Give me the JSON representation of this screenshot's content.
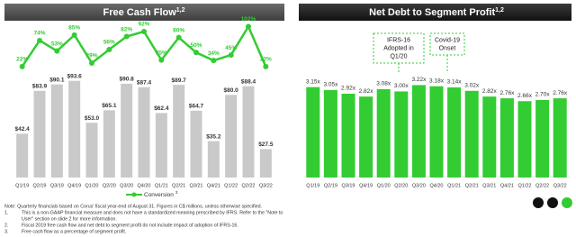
{
  "chart_data": [
    {
      "type": "bar_line",
      "title": "Free Cash Flow",
      "title_superscript": "1,2",
      "categories": [
        "Q1/19",
        "Q2/19",
        "Q3/19",
        "Q4/19",
        "Q1/20",
        "Q2/20",
        "Q3/20",
        "Q4/20",
        "Q1/21",
        "Q2/21",
        "Q3/21",
        "Q4/21",
        "Q1/22",
        "Q2/22",
        "Q3/22"
      ],
      "ylim": [
        0,
        150
      ],
      "y2lim": [
        -200,
        110
      ],
      "series": [
        {
          "type": "bar",
          "color": "#c9c9c9",
          "values": [
            42.4,
            83.9,
            90.1,
            93.6,
            53.0,
            65.1,
            90.8,
            87.4,
            62.4,
            89.7,
            64.7,
            35.2,
            80.0,
            88.4,
            27.5
          ],
          "value_labels": [
            "$42.4",
            "$83.9",
            "$90.1",
            "$93.6",
            "$53.0",
            "$65.1",
            "$90.8",
            "$87.4",
            "$62.4",
            "$89.7",
            "$64.7",
            "$35.2",
            "$80.0",
            "$88.4",
            "$27.5"
          ]
        },
        {
          "type": "line",
          "name": "Conversion",
          "name_superscript": "3",
          "color": "#33cc33",
          "axis": "y2",
          "values": [
            22,
            74,
            53,
            85,
            29,
            56,
            82,
            92,
            35,
            80,
            50,
            34,
            45,
            102,
            22
          ],
          "value_labels": [
            "22%",
            "74%",
            "53%",
            "85%",
            "29%",
            "56%",
            "82%",
            "92%",
            "35%",
            "80%",
            "50%",
            "34%",
            "45%",
            "102%",
            "22%"
          ]
        }
      ]
    },
    {
      "type": "bar",
      "title": "Net Debt to Segment Profit",
      "title_superscript": "1,2",
      "categories": [
        "Q1/19",
        "Q2/19",
        "Q3/19",
        "Q4/19",
        "Q1/20",
        "Q2/20",
        "Q3/20",
        "Q4/20",
        "Q1/21",
        "Q2/21",
        "Q3/21",
        "Q4/21",
        "Q1/22",
        "Q2/22",
        "Q3/22"
      ],
      "ylim": [
        0,
        5.4
      ],
      "color": "#33cc33",
      "values": [
        3.15,
        3.05,
        2.92,
        2.82,
        3.08,
        3.0,
        3.22,
        3.18,
        3.14,
        3.02,
        2.82,
        2.76,
        2.66,
        2.7,
        2.76
      ],
      "value_labels": [
        "3.15x",
        "3.05x",
        "2.92x",
        "2.82x",
        "3.08x",
        "3.00x",
        "3.22x",
        "3.18x",
        "3.14x",
        "3.02x",
        "2.82x",
        "2.76x",
        "2.66x",
        "2.70x",
        "2.76x"
      ],
      "annotations": [
        {
          "lines": [
            "IFRS-16",
            "Adopted in",
            "Q1/20"
          ]
        },
        {
          "lines": [
            "Covid-19",
            "Onset"
          ]
        }
      ]
    }
  ],
  "footnotes": {
    "note": "Note: Quarterly financials based on Corus' fiscal year-end of August 31. Figures in C$ millions, unless otherwise specified.",
    "items": [
      {
        "marker": "1.",
        "lines": [
          "This is a non-GAAP financial measure and does not have a standardized meaning prescribed by IFRS.  Refer to the \"Note to",
          "User\" section on slide 2 for more information."
        ]
      },
      {
        "marker": "2.",
        "lines": [
          "Fiscal 2019 free cash flow and net debt to segment profit do not include impact of adoption of IFRS-16."
        ]
      },
      {
        "marker": "3.",
        "lines": [
          "Free cash flow as a percentage of segment profit."
        ]
      }
    ]
  }
}
